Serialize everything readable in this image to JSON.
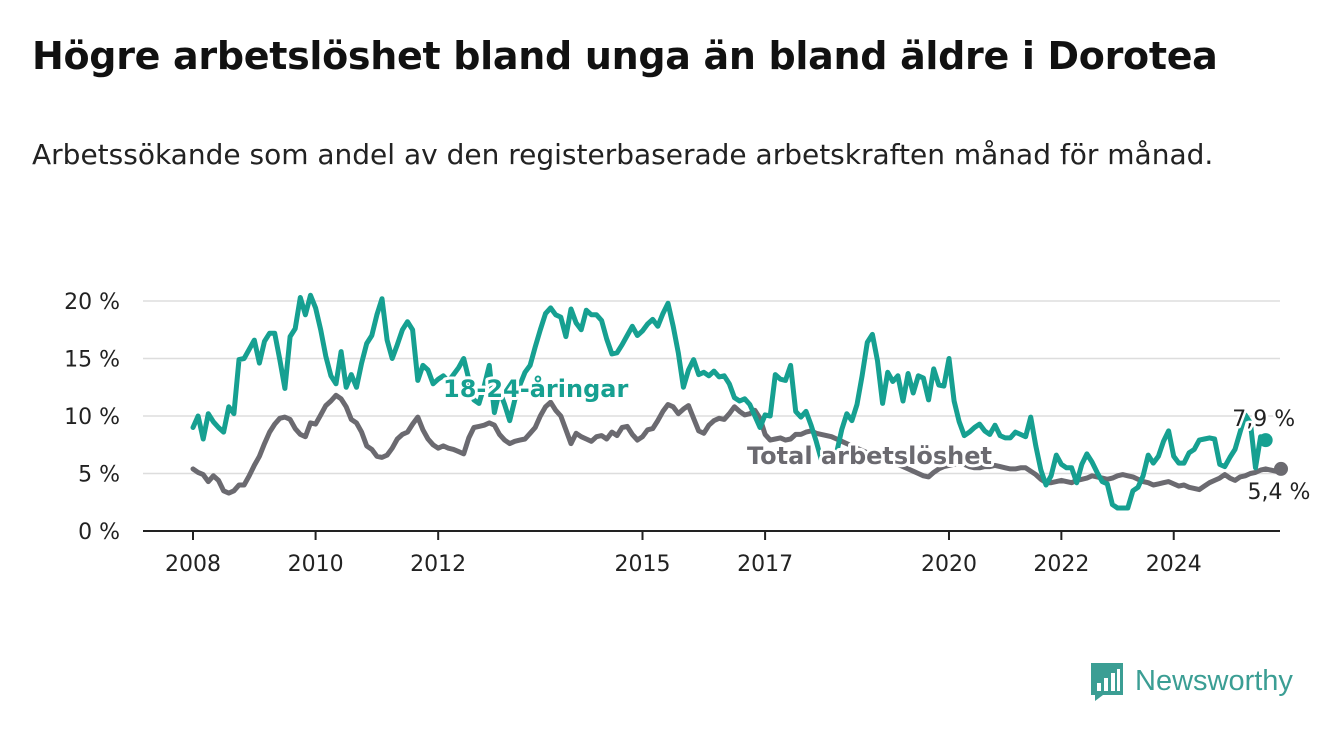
{
  "title": "Högre arbetslöshet bland unga än bland äldre i Dorotea",
  "subtitle": "Arbetssökande som andel av den registerbaserade arbetskraften månad för månad.",
  "brand": {
    "name": "Newsworthy"
  },
  "colors": {
    "youth": "#16a091",
    "total": "#6b6a70",
    "grid": "#dddddd",
    "axis": "#222222",
    "text": "#222222"
  },
  "chart_data": {
    "type": "line",
    "x_start": "2008-01",
    "x_unit": "month",
    "x_ticks": [
      {
        "label": "2008",
        "value": "2008-01"
      },
      {
        "label": "2010",
        "value": "2010-01"
      },
      {
        "label": "2012",
        "value": "2012-01"
      },
      {
        "label": "2015",
        "value": "2015-05"
      },
      {
        "label": "2017",
        "value": "2017-05"
      },
      {
        "label": "2020",
        "value": "2020-05"
      },
      {
        "label": "2022",
        "value": "2022-03"
      },
      {
        "label": "2024",
        "value": "2024-01"
      }
    ],
    "y_ticks": [
      {
        "label": "0 %",
        "value": 0
      },
      {
        "label": "5 %",
        "value": 5
      },
      {
        "label": "10 %",
        "value": 10
      },
      {
        "label": "15 %",
        "value": 15
      },
      {
        "label": "20 %",
        "value": 20
      }
    ],
    "ylim": [
      0,
      20
    ],
    "grid": true,
    "series": [
      {
        "name": "18-24-åringar",
        "key": "youth",
        "end_label": "7,9 %",
        "values": [
          9.0,
          10.0,
          8.0,
          10.2,
          9.5,
          9.0,
          8.6,
          10.8,
          10.2,
          14.9,
          15.0,
          15.8,
          16.6,
          14.6,
          16.5,
          17.2,
          17.2,
          14.9,
          12.4,
          16.9,
          17.6,
          20.3,
          18.8,
          20.5,
          19.4,
          17.5,
          15.2,
          13.5,
          12.8,
          15.6,
          12.5,
          13.6,
          12.5,
          14.6,
          16.3,
          17.0,
          18.8,
          20.2,
          16.6,
          15.0,
          16.2,
          17.5,
          18.2,
          17.5,
          13.1,
          14.4,
          14.0,
          12.8,
          13.2,
          13.5,
          13.0,
          13.6,
          14.2,
          15.0,
          13.2,
          11.4,
          11.1,
          12.6,
          14.4,
          10.3,
          12.2,
          11.0,
          9.6,
          11.4,
          12.7,
          13.8,
          14.4,
          16.0,
          17.5,
          18.9,
          19.4,
          18.8,
          18.6,
          16.9,
          19.3,
          18.1,
          17.5,
          19.2,
          18.8,
          18.8,
          18.3,
          16.7,
          15.4,
          15.5,
          16.2,
          17.0,
          17.8,
          17.0,
          17.4,
          18.0,
          18.4,
          17.8,
          18.9,
          19.8,
          17.8,
          15.5,
          12.5,
          14.0,
          14.9,
          13.6,
          13.8,
          13.5,
          13.9,
          13.4,
          13.5,
          12.8,
          11.6,
          11.3,
          11.5,
          11.0,
          10.0,
          9.0,
          10.1,
          10.0,
          13.6,
          13.2,
          13.1,
          14.4,
          10.4,
          9.9,
          10.4,
          9.2,
          7.8,
          6.2,
          5.8,
          6.2,
          6.8,
          8.8,
          10.2,
          9.6,
          11.0,
          13.5,
          16.4,
          17.1,
          14.8,
          11.1,
          13.8,
          13.0,
          13.5,
          11.3,
          13.7,
          12.0,
          13.5,
          13.3,
          11.4,
          14.1,
          12.7,
          12.6,
          15.0,
          11.3,
          9.5,
          8.3,
          8.6,
          9.0,
          9.3,
          8.7,
          8.4,
          9.2,
          8.3,
          8.1,
          8.1,
          8.6,
          8.4,
          8.2,
          9.9,
          7.4,
          5.3,
          4.0,
          4.8,
          6.6,
          5.8,
          5.5,
          5.5,
          4.2,
          5.8,
          6.7,
          6.0,
          5.1,
          4.3,
          4.1,
          2.3,
          2.0,
          2.0,
          2.0,
          3.5,
          3.8,
          4.8,
          6.6,
          5.9,
          6.5,
          7.8,
          8.7,
          6.5,
          5.9,
          5.9,
          6.8,
          7.1,
          7.9,
          8.0,
          8.1,
          8.0,
          5.8,
          5.6,
          6.4,
          7.1,
          8.6,
          10.1,
          9.4,
          5.5,
          8.2,
          7.9
        ]
      },
      {
        "name": "Total arbetslöshet",
        "key": "total",
        "end_label": "5,4 %",
        "values": [
          5.4,
          5.1,
          4.9,
          4.3,
          4.8,
          4.4,
          3.5,
          3.3,
          3.5,
          4.0,
          4.0,
          4.8,
          5.7,
          6.5,
          7.6,
          8.6,
          9.3,
          9.8,
          9.9,
          9.7,
          8.9,
          8.4,
          8.2,
          9.4,
          9.3,
          10.1,
          10.9,
          11.3,
          11.8,
          11.5,
          10.8,
          9.7,
          9.4,
          8.6,
          7.4,
          7.1,
          6.5,
          6.4,
          6.6,
          7.2,
          8.0,
          8.4,
          8.6,
          9.3,
          9.9,
          8.8,
          8.0,
          7.5,
          7.2,
          7.4,
          7.2,
          7.1,
          6.9,
          6.7,
          8.1,
          9.0,
          9.1,
          9.2,
          9.4,
          9.2,
          8.4,
          7.9,
          7.6,
          7.8,
          7.9,
          8.0,
          8.5,
          9.0,
          10.0,
          10.8,
          11.2,
          10.5,
          10.0,
          8.8,
          7.6,
          8.5,
          8.2,
          8.0,
          7.8,
          8.2,
          8.3,
          8.0,
          8.6,
          8.3,
          9.0,
          9.1,
          8.4,
          7.9,
          8.2,
          8.8,
          8.9,
          9.6,
          10.4,
          11.0,
          10.8,
          10.2,
          10.6,
          10.9,
          9.8,
          8.7,
          8.5,
          9.2,
          9.6,
          9.8,
          9.7,
          10.2,
          10.8,
          10.4,
          10.1,
          10.2,
          10.5,
          9.8,
          8.4,
          7.9,
          8.0,
          8.1,
          7.9,
          8.0,
          8.4,
          8.4,
          8.6,
          8.7,
          8.5,
          8.4,
          8.3,
          8.2,
          8.0,
          7.8,
          7.6,
          7.4,
          7.2,
          7.0,
          6.8,
          6.6,
          6.5,
          6.3,
          6.1,
          6.0,
          5.8,
          5.6,
          5.4,
          5.2,
          5.0,
          4.8,
          4.7,
          5.1,
          5.4,
          5.6,
          5.7,
          5.8,
          5.9,
          5.8,
          5.6,
          5.5,
          5.5,
          5.6,
          5.6,
          5.7,
          5.6,
          5.5,
          5.4,
          5.4,
          5.5,
          5.5,
          5.2,
          4.9,
          4.5,
          4.2,
          4.2,
          4.3,
          4.4,
          4.3,
          4.2,
          4.4,
          4.5,
          4.6,
          4.8,
          4.7,
          4.6,
          4.5,
          4.6,
          4.8,
          4.9,
          4.8,
          4.7,
          4.5,
          4.3,
          4.2,
          4.0,
          4.1,
          4.2,
          4.3,
          4.1,
          3.9,
          4.0,
          3.8,
          3.7,
          3.6,
          3.9,
          4.2,
          4.4,
          4.6,
          4.9,
          4.6,
          4.4,
          4.7,
          4.8,
          5.0,
          5.1,
          5.3,
          5.4,
          5.3,
          5.2,
          5.4
        ]
      }
    ]
  }
}
